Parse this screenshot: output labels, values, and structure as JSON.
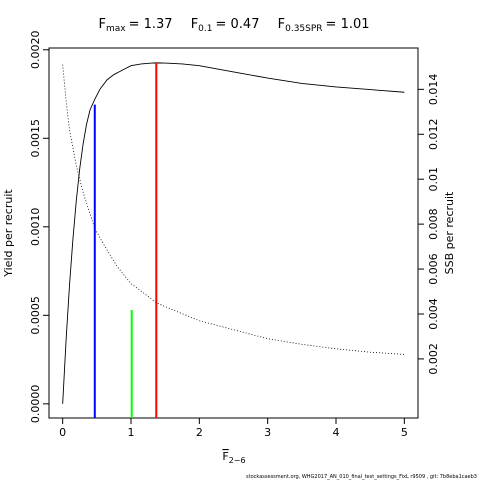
{
  "chart_data": {
    "type": "line",
    "title": {
      "fmax": {
        "base": "F",
        "sub": "max",
        "value": "= 1.37"
      },
      "f01": {
        "base": "F",
        "sub": "0.1",
        "value": "= 0.47"
      },
      "f035spr": {
        "base": "F",
        "sub": "0.35SPR",
        "value": "= 1.01"
      }
    },
    "xlabel": {
      "base": "F",
      "sub": "2−6"
    },
    "ylabel_left": "Yield per recruit",
    "ylabel_right": "SSB per recruit",
    "xlim": [
      -0.2,
      5.2
    ],
    "ylim_left": [
      -8e-05,
      0.00201
    ],
    "ylim_right": [
      -0.00063,
      0.01584
    ],
    "x_ticks": [
      "0",
      "1",
      "2",
      "3",
      "4",
      "5"
    ],
    "y_left_ticks": [
      "0.0000",
      "0.0005",
      "0.0010",
      "0.0015",
      "0.0020"
    ],
    "y_right_ticks": [
      "0.002",
      "0.004",
      "0.006",
      "0.008",
      "0.01",
      "0.012",
      "0.014"
    ],
    "series": [
      {
        "axis": "left",
        "style": "solid",
        "color": "#000000",
        "x": [
          0,
          0.05,
          0.1,
          0.15,
          0.2,
          0.25,
          0.3,
          0.35,
          0.4,
          0.47,
          0.55,
          0.65,
          0.75,
          0.85,
          1.0,
          1.15,
          1.3,
          1.37,
          1.5,
          1.75,
          2.0,
          2.5,
          3.0,
          3.5,
          4.0,
          4.5,
          5.0
        ],
        "values": [
          0,
          0.00036,
          0.00067,
          0.00093,
          0.00115,
          0.00133,
          0.00147,
          0.00158,
          0.00166,
          0.00172,
          0.00178,
          0.00183,
          0.00186,
          0.00188,
          0.00191,
          0.00192,
          0.001925,
          0.001926,
          0.001925,
          0.00192,
          0.00191,
          0.001875,
          0.00184,
          0.00181,
          0.00179,
          0.001775,
          0.00176
        ]
      },
      {
        "axis": "right",
        "style": "dotted",
        "color": "#000000",
        "x": [
          0,
          0.05,
          0.1,
          0.2,
          0.3,
          0.47,
          0.6,
          0.8,
          1.0,
          1.2,
          1.37,
          1.6,
          2.0,
          2.5,
          3.0,
          3.5,
          4.0,
          4.5,
          5.0
        ],
        "values": [
          0.0151,
          0.0135,
          0.0122,
          0.0106,
          0.0094,
          0.0078,
          0.0071,
          0.0061,
          0.00535,
          0.0049,
          0.0045,
          0.0042,
          0.0037,
          0.0033,
          0.0029,
          0.00265,
          0.00245,
          0.0023,
          0.0022
        ]
      }
    ],
    "reference_lines": [
      {
        "x": 0.47,
        "y": 0.00169,
        "color": "#0000ff"
      },
      {
        "x": 1.01,
        "y": 0.00053,
        "color": "#00ff00"
      },
      {
        "x": 1.37,
        "y": 0.001926,
        "color": "#ff0000"
      }
    ],
    "grid": false,
    "legend": "none"
  },
  "footer": "stockassessment.org, WHG2017_AN_010_final_test_settings_FixL r9509 , git: 7b8eba1caeb3"
}
